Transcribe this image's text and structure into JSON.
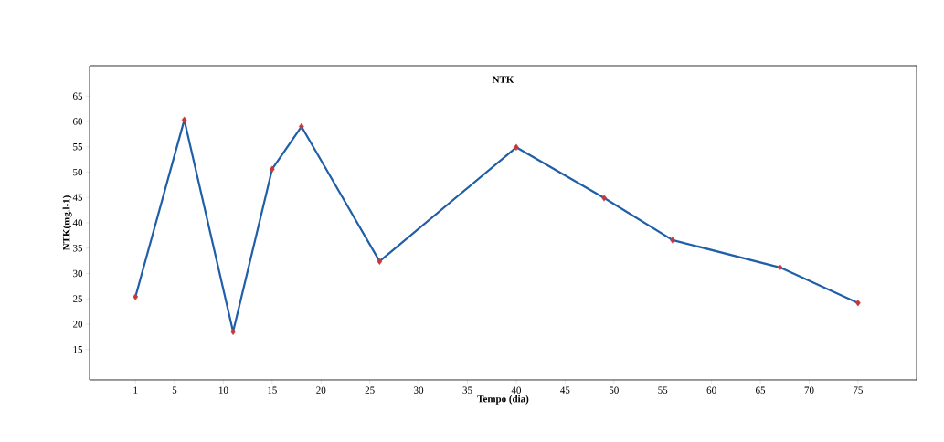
{
  "chart_data": {
    "type": "line",
    "title": "NTK",
    "xlabel": "Tempo (dia)",
    "ylabel": "NTK(mg.l-1)",
    "x": [
      1,
      6,
      11,
      15,
      18,
      26,
      40,
      49,
      56,
      67,
      75
    ],
    "series": [
      {
        "color": "#1f5ea8",
        "colors": [
          "#c8383a",
          "#c8383a",
          "#c8383a",
          "#c8383a",
          "#c8383a",
          "#c8383a",
          "#c8383a",
          "#c8383a",
          "#c8383a",
          "#c8383a",
          "#c8383a"
        ],
        "values": [
          25.4,
          60.3,
          18.5,
          50.6,
          59.0,
          32.4,
          54.9,
          44.9,
          36.6,
          31.2,
          24.2
        ]
      }
    ],
    "xlim": [
      -3.7,
      81
    ],
    "ylim": [
      9,
      71
    ],
    "xticks": [
      1,
      5,
      10,
      15,
      20,
      25,
      30,
      35,
      40,
      45,
      50,
      55,
      60,
      65,
      70,
      75
    ],
    "yticks": [
      15,
      20,
      25,
      30,
      35,
      40,
      45,
      50,
      55,
      60,
      65
    ],
    "marker": "diamond",
    "line_style": "solid"
  }
}
